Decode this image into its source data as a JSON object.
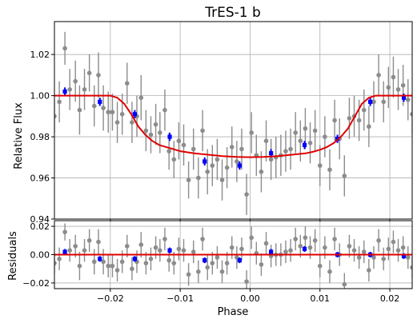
{
  "chart_data": [
    {
      "type": "scatter",
      "title": "TrES-1 b",
      "xlabel": "",
      "ylabel": "Relative Flux",
      "xlim": [
        -0.028,
        0.0232
      ],
      "ylim": [
        0.94,
        1.036
      ],
      "xticks": [
        -0.02,
        -0.01,
        0.0,
        0.01,
        0.02
      ],
      "xtick_labels": [
        "",
        "",
        "",
        "",
        ""
      ],
      "yticks": [
        0.94,
        0.96,
        0.98,
        1.0,
        1.02
      ],
      "ytick_labels": [
        "0.94",
        "0.96",
        "0.98",
        "1.00",
        "1.02"
      ],
      "grid": true,
      "colors": {
        "raw": "#8c8c8c",
        "binned": "#0000ff",
        "model": "#e00000",
        "grid": "#b0b0b0"
      },
      "series": [
        {
          "kind": "raw",
          "points": [
            [
              -0.028,
              0.99,
              0.008
            ],
            [
              -0.0273,
              0.997,
              0.01
            ],
            [
              -0.0265,
              1.023,
              0.008
            ],
            [
              -0.0258,
              1.003,
              0.01
            ],
            [
              -0.025,
              1.007,
              0.01
            ],
            [
              -0.0244,
              0.993,
              0.012
            ],
            [
              -0.0237,
              1.003,
              0.01
            ],
            [
              -0.023,
              1.011,
              0.009
            ],
            [
              -0.0223,
              0.995,
              0.01
            ],
            [
              -0.0217,
              1.01,
              0.011
            ],
            [
              -0.021,
              0.994,
              0.011
            ],
            [
              -0.0203,
              0.992,
              0.01
            ],
            [
              -0.0197,
              0.992,
              0.009
            ],
            [
              -0.019,
              0.987,
              0.01
            ],
            [
              -0.0183,
              0.991,
              0.01
            ],
            [
              -0.0176,
              1.006,
              0.01
            ],
            [
              -0.0169,
              0.987,
              0.01
            ],
            [
              -0.0162,
              0.99,
              0.01
            ],
            [
              -0.0156,
              0.999,
              0.011
            ],
            [
              -0.0149,
              0.983,
              0.01
            ],
            [
              -0.0142,
              0.981,
              0.009
            ],
            [
              -0.0135,
              0.986,
              0.01
            ],
            [
              -0.0129,
              0.982,
              0.01
            ],
            [
              -0.0122,
              0.993,
              0.01
            ],
            [
              -0.0116,
              0.973,
              0.009
            ],
            [
              -0.0109,
              0.969,
              0.009
            ],
            [
              -0.0102,
              0.978,
              0.009
            ],
            [
              -0.0095,
              0.976,
              0.01
            ],
            [
              -0.0088,
              0.959,
              0.009
            ],
            [
              -0.0081,
              0.974,
              0.01
            ],
            [
              -0.0074,
              0.96,
              0.01
            ],
            [
              -0.0068,
              0.983,
              0.01
            ],
            [
              -0.0061,
              0.963,
              0.011
            ],
            [
              -0.0054,
              0.966,
              0.01
            ],
            [
              -0.0047,
              0.969,
              0.01
            ],
            [
              -0.004,
              0.959,
              0.01
            ],
            [
              -0.0033,
              0.965,
              0.01
            ],
            [
              -0.0026,
              0.975,
              0.01
            ],
            [
              -0.0019,
              0.968,
              0.01
            ],
            [
              -0.0012,
              0.974,
              0.01
            ],
            [
              -0.0005,
              0.952,
              0.01
            ],
            [
              0.0002,
              0.982,
              0.01
            ],
            [
              0.0009,
              0.971,
              0.01
            ],
            [
              0.0016,
              0.963,
              0.01
            ],
            [
              0.0023,
              0.978,
              0.01
            ],
            [
              0.003,
              0.969,
              0.01
            ],
            [
              0.0037,
              0.97,
              0.01
            ],
            [
              0.0044,
              0.971,
              0.01
            ],
            [
              0.0051,
              0.973,
              0.01
            ],
            [
              0.0058,
              0.974,
              0.01
            ],
            [
              0.0065,
              0.982,
              0.01
            ],
            [
              0.0072,
              0.978,
              0.01
            ],
            [
              0.0079,
              0.984,
              0.01
            ],
            [
              0.0086,
              0.977,
              0.01
            ],
            [
              0.0093,
              0.983,
              0.01
            ],
            [
              0.01,
              0.966,
              0.01
            ],
            [
              0.0107,
              0.98,
              0.01
            ],
            [
              0.0114,
              0.964,
              0.01
            ],
            [
              0.0121,
              0.988,
              0.01
            ],
            [
              0.0128,
              0.979,
              0.01
            ],
            [
              0.0135,
              0.961,
              0.01
            ],
            [
              0.0142,
              0.989,
              0.01
            ],
            [
              0.0149,
              0.99,
              0.01
            ],
            [
              0.0156,
              0.988,
              0.01
            ],
            [
              0.0163,
              0.993,
              0.01
            ],
            [
              0.017,
              0.985,
              0.01
            ],
            [
              0.0177,
              0.997,
              0.01
            ],
            [
              0.0184,
              1.01,
              0.01
            ],
            [
              0.0191,
              0.997,
              0.01
            ],
            [
              0.0198,
              1.004,
              0.01
            ],
            [
              0.0205,
              1.009,
              0.01
            ],
            [
              0.0212,
              1.003,
              0.01
            ],
            [
              0.0219,
              1.005,
              0.01
            ],
            [
              0.0226,
              0.998,
              0.01
            ],
            [
              0.0232,
              0.991,
              0.01
            ]
          ]
        },
        {
          "kind": "binned",
          "points": [
            [
              -0.0265,
              1.002,
              0.002
            ],
            [
              -0.0215,
              0.997,
              0.002
            ],
            [
              -0.0165,
              0.991,
              0.002
            ],
            [
              -0.0115,
              0.98,
              0.002
            ],
            [
              -0.0065,
              0.968,
              0.002
            ],
            [
              -0.0015,
              0.966,
              0.002
            ],
            [
              0.003,
              0.972,
              0.002
            ],
            [
              0.0078,
              0.976,
              0.002
            ],
            [
              0.0125,
              0.979,
              0.002
            ],
            [
              0.0172,
              0.997,
              0.002
            ],
            [
              0.022,
              0.999,
              0.002
            ]
          ]
        },
        {
          "kind": "model",
          "x": [
            -0.028,
            -0.02,
            -0.019,
            -0.018,
            -0.017,
            -0.016,
            -0.015,
            -0.014,
            -0.013,
            -0.012,
            -0.011,
            -0.01,
            -0.008,
            -0.006,
            -0.004,
            -0.002,
            0.0,
            0.002,
            0.004,
            0.006,
            0.008,
            0.009,
            0.01,
            0.011,
            0.012,
            0.013,
            0.014,
            0.015,
            0.016,
            0.017,
            0.018,
            0.0232
          ],
          "y": [
            1.0,
            1.0,
            0.999,
            0.996,
            0.991,
            0.985,
            0.981,
            0.978,
            0.976,
            0.975,
            0.974,
            0.973,
            0.972,
            0.9713,
            0.9706,
            0.9702,
            0.9701,
            0.9702,
            0.9706,
            0.9713,
            0.972,
            0.9727,
            0.9737,
            0.975,
            0.977,
            0.98,
            0.984,
            0.99,
            0.996,
            0.999,
            1.0,
            1.0
          ]
        }
      ]
    },
    {
      "type": "scatter",
      "title": "",
      "xlabel": "Phase",
      "ylabel": "Residuals",
      "xlim": [
        -0.028,
        0.0232
      ],
      "ylim": [
        -0.024,
        0.024
      ],
      "xticks": [
        -0.02,
        -0.01,
        0.0,
        0.01,
        0.02
      ],
      "xtick_labels": [
        "−0.02",
        "−0.01",
        "0.00",
        "0.01",
        "0.02"
      ],
      "yticks": [
        -0.02,
        0.0,
        0.02
      ],
      "ytick_labels": [
        "−0.02",
        "0.00",
        "0.02"
      ],
      "grid": true,
      "colors": {
        "raw": "#8c8c8c",
        "binned": "#0000ff",
        "model": "#e00000",
        "grid": "#b0b0b0"
      },
      "series": [
        {
          "kind": "raw",
          "points": [
            [
              -0.028,
              -0.006,
              0.007
            ],
            [
              -0.0273,
              -0.003,
              0.008
            ],
            [
              -0.0265,
              0.016,
              0.006
            ],
            [
              -0.0258,
              0.003,
              0.008
            ],
            [
              -0.025,
              0.006,
              0.008
            ],
            [
              -0.0244,
              -0.008,
              0.01
            ],
            [
              -0.0237,
              0.003,
              0.008
            ],
            [
              -0.023,
              0.01,
              0.008
            ],
            [
              -0.0223,
              -0.005,
              0.009
            ],
            [
              -0.0217,
              0.009,
              0.009
            ],
            [
              -0.021,
              -0.005,
              0.009
            ],
            [
              -0.0203,
              -0.008,
              0.008
            ],
            [
              -0.0197,
              -0.008,
              0.008
            ],
            [
              -0.019,
              -0.011,
              0.008
            ],
            [
              -0.0183,
              -0.005,
              0.008
            ],
            [
              -0.0176,
              0.006,
              0.008
            ],
            [
              -0.0169,
              -0.01,
              0.008
            ],
            [
              -0.0162,
              -0.005,
              0.008
            ],
            [
              -0.0156,
              0.007,
              0.009
            ],
            [
              -0.0149,
              -0.006,
              0.008
            ],
            [
              -0.0142,
              -0.003,
              0.008
            ],
            [
              -0.0135,
              0.005,
              0.008
            ],
            [
              -0.0129,
              0.003,
              0.008
            ],
            [
              -0.0122,
              0.011,
              0.008
            ],
            [
              -0.0116,
              -0.004,
              0.008
            ],
            [
              -0.0109,
              -0.006,
              0.008
            ],
            [
              -0.0102,
              0.004,
              0.008
            ],
            [
              -0.0095,
              0.003,
              0.008
            ],
            [
              -0.0088,
              -0.014,
              0.008
            ],
            [
              -0.0081,
              0.002,
              0.008
            ],
            [
              -0.0074,
              -0.012,
              0.008
            ],
            [
              -0.0068,
              0.011,
              0.008
            ],
            [
              -0.0061,
              -0.009,
              0.009
            ],
            [
              -0.0054,
              -0.006,
              0.008
            ],
            [
              -0.0047,
              -0.002,
              0.008
            ],
            [
              -0.004,
              -0.012,
              0.008
            ],
            [
              -0.0033,
              -0.006,
              0.008
            ],
            [
              -0.0026,
              0.005,
              0.008
            ],
            [
              -0.0019,
              -0.002,
              0.008
            ],
            [
              -0.0012,
              0.004,
              0.008
            ],
            [
              -0.0005,
              -0.019,
              0.008
            ],
            [
              0.0002,
              0.012,
              0.008
            ],
            [
              0.0009,
              0.001,
              0.008
            ],
            [
              0.0016,
              -0.007,
              0.008
            ],
            [
              0.0023,
              0.008,
              0.008
            ],
            [
              0.003,
              -0.001,
              0.008
            ],
            [
              0.0037,
              0.0,
              0.008
            ],
            [
              0.0044,
              0.0,
              0.008
            ],
            [
              0.0051,
              0.002,
              0.008
            ],
            [
              0.0058,
              0.003,
              0.008
            ],
            [
              0.0065,
              0.011,
              0.008
            ],
            [
              0.0072,
              0.006,
              0.008
            ],
            [
              0.0079,
              0.012,
              0.008
            ],
            [
              0.0086,
              0.005,
              0.008
            ],
            [
              0.0093,
              0.01,
              0.008
            ],
            [
              0.01,
              -0.008,
              0.008
            ],
            [
              0.0107,
              0.005,
              0.008
            ],
            [
              0.0114,
              -0.012,
              0.008
            ],
            [
              0.0121,
              0.011,
              0.008
            ],
            [
              0.0128,
              0.0,
              0.008
            ],
            [
              0.0135,
              -0.021,
              0.008
            ],
            [
              0.0142,
              0.006,
              0.008
            ],
            [
              0.0149,
              0.003,
              0.008
            ],
            [
              0.0156,
              -0.002,
              0.008
            ],
            [
              0.0163,
              0.002,
              0.008
            ],
            [
              0.017,
              -0.011,
              0.008
            ],
            [
              0.0177,
              -0.002,
              0.008
            ],
            [
              0.0184,
              0.01,
              0.008
            ],
            [
              0.0191,
              -0.003,
              0.008
            ],
            [
              0.0198,
              0.004,
              0.008
            ],
            [
              0.0205,
              0.009,
              0.008
            ],
            [
              0.0212,
              0.003,
              0.008
            ],
            [
              0.0219,
              0.005,
              0.008
            ],
            [
              0.0226,
              -0.002,
              0.008
            ],
            [
              0.0232,
              -0.009,
              0.008
            ]
          ]
        },
        {
          "kind": "binned",
          "points": [
            [
              -0.0265,
              0.002,
              0.002
            ],
            [
              -0.0215,
              -0.003,
              0.002
            ],
            [
              -0.0165,
              -0.003,
              0.002
            ],
            [
              -0.0115,
              0.003,
              0.002
            ],
            [
              -0.0065,
              -0.004,
              0.002
            ],
            [
              -0.0015,
              -0.004,
              0.002
            ],
            [
              0.003,
              0.002,
              0.002
            ],
            [
              0.0078,
              0.004,
              0.002
            ],
            [
              0.0125,
              0.0,
              0.002
            ],
            [
              0.0172,
              0.0,
              0.002
            ],
            [
              0.022,
              -0.001,
              0.002
            ]
          ]
        },
        {
          "kind": "model",
          "x": [
            -0.028,
            0.0232
          ],
          "y": [
            0.0,
            0.0
          ]
        }
      ]
    }
  ]
}
